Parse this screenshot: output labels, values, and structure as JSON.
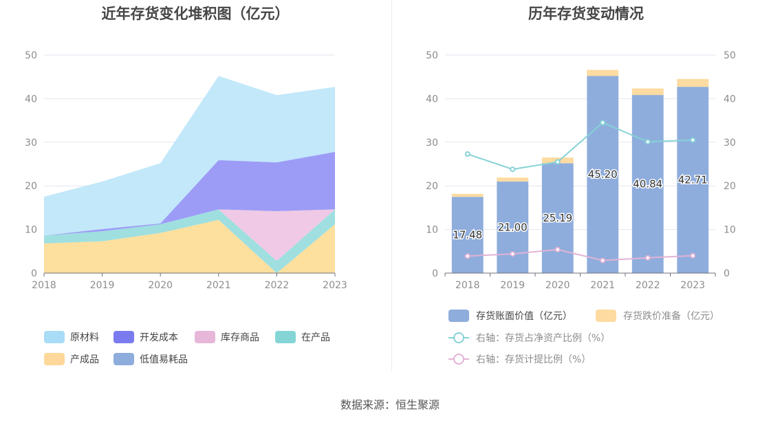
{
  "left_title": "近年存货变化堆积图（亿元）",
  "right_title": "历年存货变动情况",
  "source": "数据来源：恒生聚源",
  "chart_data": [
    {
      "type": "area",
      "stacked": true,
      "title": "近年存货变化堆积图（亿元）",
      "categories": [
        "2018",
        "2019",
        "2020",
        "2021",
        "2022",
        "2023"
      ],
      "ylim": [
        0,
        50
      ],
      "yticks": [
        0,
        10,
        20,
        30,
        40,
        50
      ],
      "grid": true,
      "legend_position": "bottom",
      "series": [
        {
          "name": "产成品",
          "color": "#fddf9e",
          "values": [
            6.8,
            7.3,
            9.2,
            12.2,
            0.0,
            11.2
          ]
        },
        {
          "name": "在产品",
          "color": "#9fdfe0",
          "values": [
            1.8,
            2.3,
            2.0,
            2.4,
            2.8,
            3.4
          ]
        },
        {
          "name": "库存商品",
          "color": "#efc9e5",
          "values": [
            0,
            0,
            0,
            0,
            11.4,
            0
          ]
        },
        {
          "name": "开发成本",
          "color": "#9c9cf7",
          "values": [
            0,
            0.5,
            0.2,
            11.3,
            11.2,
            13.2
          ]
        },
        {
          "name": "原材料",
          "color": "#c2e8fa",
          "values": [
            8.9,
            10.9,
            13.8,
            19.3,
            15.4,
            14.9
          ]
        },
        {
          "name": "低值易耗品",
          "color": "#8eaddc",
          "values": [
            0,
            0,
            0,
            0,
            0,
            0
          ]
        }
      ],
      "legend": [
        {
          "name": "原材料",
          "color": "#a9dcf6"
        },
        {
          "name": "开发成本",
          "color": "#7b7bf0"
        },
        {
          "name": "库存商品",
          "color": "#e6b7d9"
        },
        {
          "name": "在产品",
          "color": "#85d5d6"
        },
        {
          "name": "产成品",
          "color": "#fdd89a"
        },
        {
          "name": "低值易耗品",
          "color": "#8eaddc"
        }
      ]
    },
    {
      "type": "bar",
      "stacked": true,
      "title": "历年存货变动情况",
      "categories": [
        "2018",
        "2019",
        "2020",
        "2021",
        "2022",
        "2023"
      ],
      "ylim": [
        0,
        50
      ],
      "yticks": [
        0,
        10,
        20,
        30,
        40,
        50
      ],
      "y2lim": [
        0,
        50
      ],
      "y2ticks": [
        0,
        10,
        20,
        30,
        40,
        50
      ],
      "grid": true,
      "legend_position": "bottom",
      "series": [
        {
          "name": "存货账面价值（亿元）",
          "kind": "bar",
          "color": "#8eaddc",
          "values": [
            17.48,
            21.0,
            25.19,
            45.2,
            40.84,
            42.71
          ],
          "labels": [
            "17.48",
            "21.00",
            "25.19",
            "45.20",
            "40.84",
            "42.71"
          ]
        },
        {
          "name": "存货跌价准备（亿元）",
          "kind": "bar",
          "color": "#fddba1",
          "values": [
            0.7,
            0.9,
            1.3,
            1.4,
            1.5,
            1.8
          ]
        },
        {
          "name": "右轴：存货占净资产比例（%）",
          "kind": "line",
          "axis": "right",
          "color": "#86d2d5",
          "values": [
            27.3,
            23.8,
            25.5,
            34.5,
            30.1,
            30.5
          ]
        },
        {
          "name": "右轴：存货计提比例（%）",
          "kind": "line",
          "axis": "right",
          "color": "#e3b3d5",
          "values": [
            3.9,
            4.4,
            5.4,
            2.9,
            3.5,
            4.0
          ]
        }
      ]
    }
  ]
}
